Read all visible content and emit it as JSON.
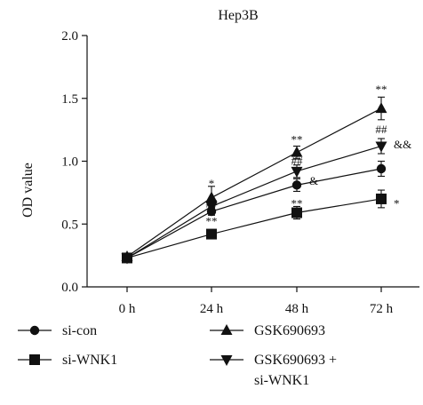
{
  "chart_data": {
    "type": "line",
    "title": "Hep3B",
    "xlabel": "",
    "ylabel": "OD value",
    "categories": [
      "0 h",
      "24 h",
      "48 h",
      "72 h"
    ],
    "ylim": [
      0,
      2.0
    ],
    "yticks": [
      "0.0",
      "0.5",
      "1.0",
      "1.5",
      "2.0"
    ],
    "grid": false,
    "legend_position": "bottom",
    "series": [
      {
        "name": "si-con",
        "marker": "circle",
        "values": [
          0.23,
          0.6,
          0.81,
          0.94
        ],
        "errors": [
          0.02,
          0.03,
          0.05,
          0.06
        ]
      },
      {
        "name": "si-WNK1",
        "marker": "square",
        "values": [
          0.23,
          0.42,
          0.59,
          0.7
        ],
        "errors": [
          0.02,
          0.03,
          0.05,
          0.07
        ]
      },
      {
        "name": "GSK690693",
        "marker": "triangle-up",
        "values": [
          0.24,
          0.71,
          1.07,
          1.42
        ],
        "errors": [
          0.02,
          0.09,
          0.05,
          0.09
        ]
      },
      {
        "name": "GSK690693 + si-WNK1",
        "legend_lines": [
          "GSK690693 +",
          "si-WNK1"
        ],
        "marker": "triangle-down",
        "values": [
          0.23,
          0.64,
          0.92,
          1.12
        ],
        "errors": [
          0.02,
          0.04,
          0.05,
          0.06
        ]
      }
    ],
    "annotations": [
      {
        "text": "*",
        "category": 1,
        "value": 0.82
      },
      {
        "text": "**",
        "category": 1,
        "value": 0.52
      },
      {
        "text": "##",
        "category": 1,
        "value": 0.66
      },
      {
        "text": "**",
        "category": 2,
        "value": 1.17
      },
      {
        "text": "##",
        "category": 2,
        "value": 1.0
      },
      {
        "text": "&",
        "category": 2,
        "value": 0.84
      },
      {
        "text": "**",
        "category": 2,
        "value": 0.66
      },
      {
        "text": "**",
        "category": 3,
        "value": 1.57
      },
      {
        "text": "##",
        "category": 3,
        "value": 1.25
      },
      {
        "text": "&&",
        "category": 3,
        "value": 1.13
      },
      {
        "text": "*",
        "category": 3,
        "value": 0.66
      }
    ]
  }
}
